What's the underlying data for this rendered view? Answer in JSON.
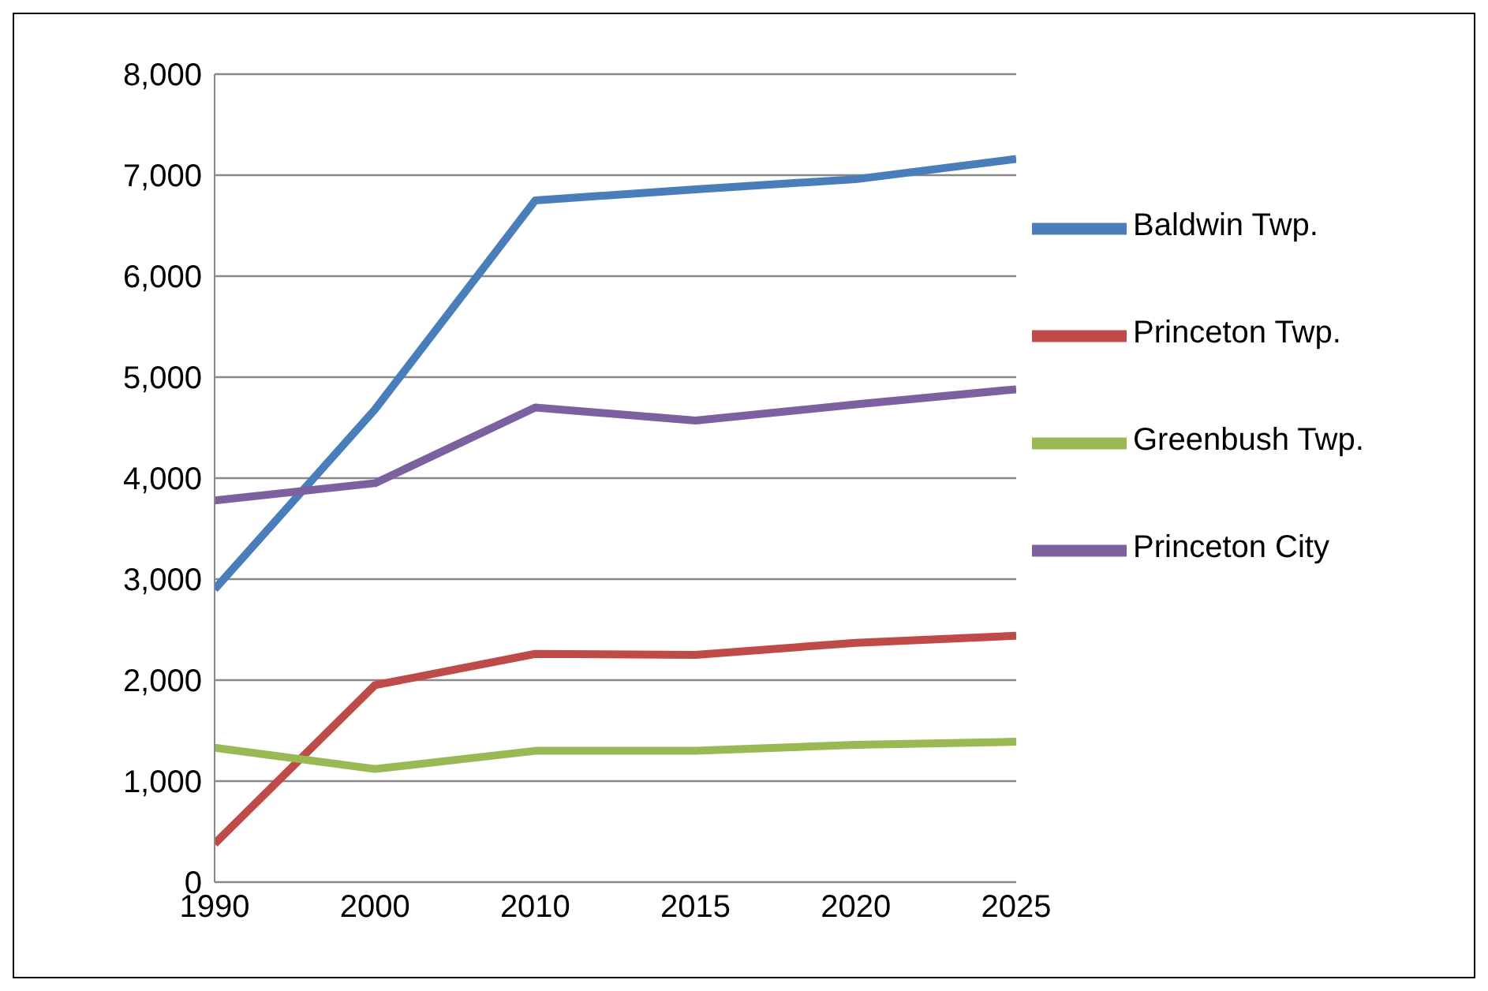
{
  "chart_data": {
    "type": "line",
    "categories": [
      "1990",
      "2000",
      "2010",
      "2015",
      "2020",
      "2025"
    ],
    "series": [
      {
        "name": "Baldwin Twp.",
        "color": "#4a7ebb",
        "values": [
          2900,
          4680,
          6750,
          6860,
          6960,
          7160
        ]
      },
      {
        "name": "Princeton Twp.",
        "color": "#be4b48",
        "values": [
          380,
          1950,
          2260,
          2250,
          2370,
          2440
        ]
      },
      {
        "name": "Greenbush Twp.",
        "color": "#98b954",
        "values": [
          1330,
          1120,
          1300,
          1300,
          1360,
          1390
        ]
      },
      {
        "name": "Princeton City",
        "color": "#7d60a0",
        "values": [
          3780,
          3950,
          4700,
          4570,
          4730,
          4880
        ]
      }
    ],
    "ylim": [
      0,
      8000
    ],
    "yticks": [
      {
        "value": 0,
        "label": "0"
      },
      {
        "value": 1000,
        "label": "1,000"
      },
      {
        "value": 2000,
        "label": "2,000"
      },
      {
        "value": 3000,
        "label": "3,000"
      },
      {
        "value": 4000,
        "label": "4,000"
      },
      {
        "value": 5000,
        "label": "5,000"
      },
      {
        "value": 6000,
        "label": "6,000"
      },
      {
        "value": 7000,
        "label": "7,000"
      },
      {
        "value": 8000,
        "label": "8,000"
      }
    ],
    "grid": "y",
    "legend": "right",
    "marker": "none",
    "line_style": "solid"
  }
}
